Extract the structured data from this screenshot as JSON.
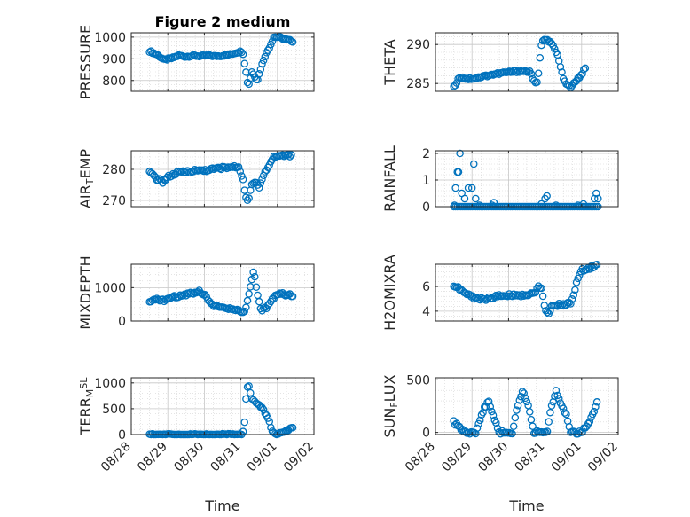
{
  "figure": {
    "title": "Figure 2 medium",
    "xlabel": "Time"
  },
  "chart_data": [
    {
      "type": "scatter",
      "title": "Figure 2 medium",
      "ylabel_parts": [
        {
          "t": "PRESSURE",
          "s": ""
        }
      ],
      "ylim": [
        750,
        1020
      ],
      "yticks": [
        800,
        900,
        1000
      ],
      "xlim": [
        "08/28",
        "09/02"
      ],
      "xtick_labels": [],
      "grid": true,
      "color": "#0072BD",
      "keys": [
        [
          28.5,
          935
        ],
        [
          28.7,
          920
        ],
        [
          28.9,
          895
        ],
        [
          29.1,
          902
        ],
        [
          29.3,
          915
        ],
        [
          29.5,
          910
        ],
        [
          29.7,
          915
        ],
        [
          29.9,
          912
        ],
        [
          30.1,
          915
        ],
        [
          30.3,
          912
        ],
        [
          30.5,
          915
        ],
        [
          30.7,
          920
        ],
        [
          30.9,
          930
        ],
        [
          31.05,
          935
        ],
        [
          31.12,
          860
        ],
        [
          31.2,
          770
        ],
        [
          31.3,
          840
        ],
        [
          31.45,
          800
        ],
        [
          31.55,
          860
        ],
        [
          31.65,
          910
        ],
        [
          31.8,
          960
        ],
        [
          31.9,
          1000
        ],
        [
          32.05,
          1000
        ],
        [
          32.2,
          990
        ],
        [
          32.45,
          980
        ]
      ],
      "interval": 0.04,
      "noise": 4
    },
    {
      "type": "scatter",
      "title": "",
      "ylabel_parts": [
        {
          "t": "THETA",
          "s": ""
        }
      ],
      "ylim": [
        284,
        291.5
      ],
      "yticks": [
        285,
        290
      ],
      "xlim": [
        "08/28",
        "09/02"
      ],
      "xtick_labels": [],
      "grid": true,
      "color": "#0072BD",
      "keys": [
        [
          28.5,
          284.5
        ],
        [
          28.65,
          285.8
        ],
        [
          28.9,
          285.6
        ],
        [
          29.1,
          285.7
        ],
        [
          29.5,
          286.1
        ],
        [
          29.9,
          286.4
        ],
        [
          30.3,
          286.6
        ],
        [
          30.6,
          286.5
        ],
        [
          30.7,
          285.2
        ],
        [
          30.8,
          285.0
        ],
        [
          30.85,
          288
        ],
        [
          30.92,
          290.5
        ],
        [
          31.0,
          290.8
        ],
        [
          31.2,
          290
        ],
        [
          31.35,
          288.5
        ],
        [
          31.45,
          286.5
        ],
        [
          31.55,
          285
        ],
        [
          31.7,
          284.5
        ],
        [
          31.85,
          285.3
        ],
        [
          32.0,
          286.2
        ],
        [
          32.1,
          287
        ]
      ],
      "interval": 0.04,
      "noise": 0.15
    },
    {
      "type": "scatter",
      "title": "",
      "ylabel_parts": [
        {
          "t": "AIR",
          "s": ""
        },
        {
          "t": "T",
          "s": "sub"
        },
        {
          "t": "EMP",
          "s": ""
        }
      ],
      "ylim": [
        268,
        286
      ],
      "yticks": [
        270,
        280
      ],
      "xlim": [
        "08/28",
        "09/02"
      ],
      "xtick_labels": [],
      "grid": true,
      "color": "#0072BD",
      "keys": [
        [
          28.5,
          279
        ],
        [
          28.7,
          277
        ],
        [
          28.85,
          276
        ],
        [
          29.0,
          277.5
        ],
        [
          29.3,
          279
        ],
        [
          29.7,
          279.5
        ],
        [
          30.1,
          279.8
        ],
        [
          30.5,
          280.5
        ],
        [
          30.95,
          280.8
        ],
        [
          31.05,
          277
        ],
        [
          31.12,
          272
        ],
        [
          31.2,
          269.5
        ],
        [
          31.3,
          275
        ],
        [
          31.4,
          276
        ],
        [
          31.5,
          274
        ],
        [
          31.6,
          278
        ],
        [
          31.75,
          281
        ],
        [
          31.9,
          284
        ],
        [
          32.1,
          284.5
        ],
        [
          32.4,
          284.5
        ]
      ],
      "interval": 0.04,
      "noise": 0.5
    },
    {
      "type": "scatter",
      "title": "",
      "ylabel_parts": [
        {
          "t": "RAINFALL",
          "s": ""
        }
      ],
      "ylim": [
        0,
        2.1
      ],
      "yticks": [
        0,
        1,
        2
      ],
      "xlim": [
        "08/28",
        "09/02"
      ],
      "xtick_labels": [],
      "grid": true,
      "color": "#0072BD",
      "keys": [
        [
          28.5,
          0
        ],
        [
          32.45,
          0
        ]
      ],
      "interval": 0.05,
      "noise": 0,
      "extra": [
        [
          28.52,
          0.05
        ],
        [
          28.55,
          0.7
        ],
        [
          28.6,
          1.3
        ],
        [
          28.63,
          1.3
        ],
        [
          28.67,
          2.0
        ],
        [
          28.72,
          0.5
        ],
        [
          28.8,
          0.3
        ],
        [
          28.9,
          0.7
        ],
        [
          29.0,
          0.7
        ],
        [
          29.05,
          1.6
        ],
        [
          29.1,
          0.3
        ],
        [
          29.2,
          0.05
        ],
        [
          29.55,
          0.05
        ],
        [
          29.6,
          0.15
        ],
        [
          30.9,
          0.1
        ],
        [
          31.0,
          0.3
        ],
        [
          31.05,
          0.4
        ],
        [
          31.3,
          0.05
        ],
        [
          31.9,
          0.05
        ],
        [
          32.05,
          0.1
        ],
        [
          32.35,
          0.3
        ],
        [
          32.4,
          0.5
        ],
        [
          32.45,
          0.3
        ]
      ]
    },
    {
      "type": "scatter",
      "title": "",
      "ylabel_parts": [
        {
          "t": "MIXDEPTH",
          "s": ""
        }
      ],
      "ylim": [
        0,
        1700
      ],
      "yticks": [
        0,
        1000
      ],
      "xlim": [
        "08/28",
        "09/02"
      ],
      "xtick_labels": [],
      "grid": true,
      "color": "#0072BD",
      "keys": [
        [
          28.5,
          550
        ],
        [
          28.7,
          650
        ],
        [
          28.9,
          620
        ],
        [
          29.1,
          700
        ],
        [
          29.3,
          750
        ],
        [
          29.5,
          800
        ],
        [
          29.7,
          850
        ],
        [
          29.85,
          900
        ],
        [
          30.0,
          800
        ],
        [
          30.2,
          500
        ],
        [
          30.5,
          380
        ],
        [
          30.8,
          350
        ],
        [
          31.0,
          300
        ],
        [
          31.08,
          200
        ],
        [
          31.15,
          400
        ],
        [
          31.25,
          1000
        ],
        [
          31.35,
          1500
        ],
        [
          31.45,
          800
        ],
        [
          31.55,
          300
        ],
        [
          31.7,
          400
        ],
        [
          31.85,
          650
        ],
        [
          32.0,
          820
        ],
        [
          32.2,
          800
        ],
        [
          32.45,
          750
        ]
      ],
      "interval": 0.04,
      "noise": 40
    },
    {
      "type": "scatter",
      "title": "",
      "ylabel_parts": [
        {
          "t": "H2OMIXRA",
          "s": ""
        }
      ],
      "ylim": [
        3.2,
        7.8
      ],
      "yticks": [
        4,
        6
      ],
      "xlim": [
        "08/28",
        "09/02"
      ],
      "xtick_labels": [],
      "grid": true,
      "color": "#0072BD",
      "keys": [
        [
          28.5,
          6.1
        ],
        [
          28.8,
          5.5
        ],
        [
          29.1,
          5.0
        ],
        [
          29.4,
          5.0
        ],
        [
          29.7,
          5.2
        ],
        [
          30.0,
          5.3
        ],
        [
          30.4,
          5.3
        ],
        [
          30.7,
          5.4
        ],
        [
          30.8,
          6.0
        ],
        [
          30.9,
          5.9
        ],
        [
          31.0,
          4.0
        ],
        [
          31.1,
          3.7
        ],
        [
          31.2,
          4.5
        ],
        [
          31.5,
          4.5
        ],
        [
          31.7,
          4.7
        ],
        [
          31.8,
          5.5
        ],
        [
          31.9,
          6.7
        ],
        [
          32.0,
          7.3
        ],
        [
          32.2,
          7.5
        ],
        [
          32.45,
          7.7
        ]
      ],
      "interval": 0.04,
      "noise": 0.12
    },
    {
      "type": "scatter",
      "title": "",
      "ylabel_parts": [
        {
          "t": "TERR",
          "s": ""
        },
        {
          "t": "M",
          "s": "sub"
        },
        {
          "t": "SL",
          "s": "sup"
        }
      ],
      "ylim": [
        0,
        1100
      ],
      "yticks": [
        0,
        500,
        1000
      ],
      "xlim": [
        "08/28",
        "09/02"
      ],
      "xtick_labels": [
        "08/28",
        "08/29",
        "08/30",
        "08/31",
        "09/01",
        "09/02"
      ],
      "grid": true,
      "color": "#0072BD",
      "keys": [
        [
          28.5,
          0
        ],
        [
          31.05,
          0
        ],
        [
          31.1,
          250
        ],
        [
          31.15,
          800
        ],
        [
          31.2,
          1000
        ],
        [
          31.3,
          700
        ],
        [
          31.45,
          600
        ],
        [
          31.6,
          500
        ],
        [
          31.75,
          300
        ],
        [
          31.85,
          80
        ],
        [
          31.95,
          0
        ],
        [
          32.2,
          50
        ],
        [
          32.45,
          150
        ]
      ],
      "interval": 0.04,
      "noise": 15
    },
    {
      "type": "scatter",
      "title": "",
      "ylabel_parts": [
        {
          "t": "SUN",
          "s": ""
        },
        {
          "t": "F",
          "s": "sub"
        },
        {
          "t": "LUX",
          "s": ""
        }
      ],
      "ylim": [
        -20,
        520
      ],
      "yticks": [
        0,
        500
      ],
      "xlim": [
        "08/28",
        "09/02"
      ],
      "xtick_labels": [
        "08/28",
        "08/29",
        "08/30",
        "08/31",
        "09/01",
        "09/02"
      ],
      "grid": true,
      "color": "#0072BD",
      "keys": [
        [
          28.5,
          100
        ],
        [
          28.7,
          30
        ],
        [
          28.9,
          0
        ],
        [
          29.1,
          0
        ],
        [
          29.3,
          200
        ],
        [
          29.45,
          300
        ],
        [
          29.6,
          150
        ],
        [
          29.75,
          0
        ],
        [
          30.1,
          0
        ],
        [
          30.25,
          250
        ],
        [
          30.4,
          400
        ],
        [
          30.55,
          250
        ],
        [
          30.7,
          0
        ],
        [
          31.05,
          0
        ],
        [
          31.15,
          200
        ],
        [
          31.3,
          400
        ],
        [
          31.45,
          250
        ],
        [
          31.6,
          150
        ],
        [
          31.7,
          0
        ],
        [
          32.0,
          0
        ],
        [
          32.2,
          100
        ],
        [
          32.45,
          300
        ]
      ],
      "interval": 0.04,
      "noise": 15
    }
  ]
}
